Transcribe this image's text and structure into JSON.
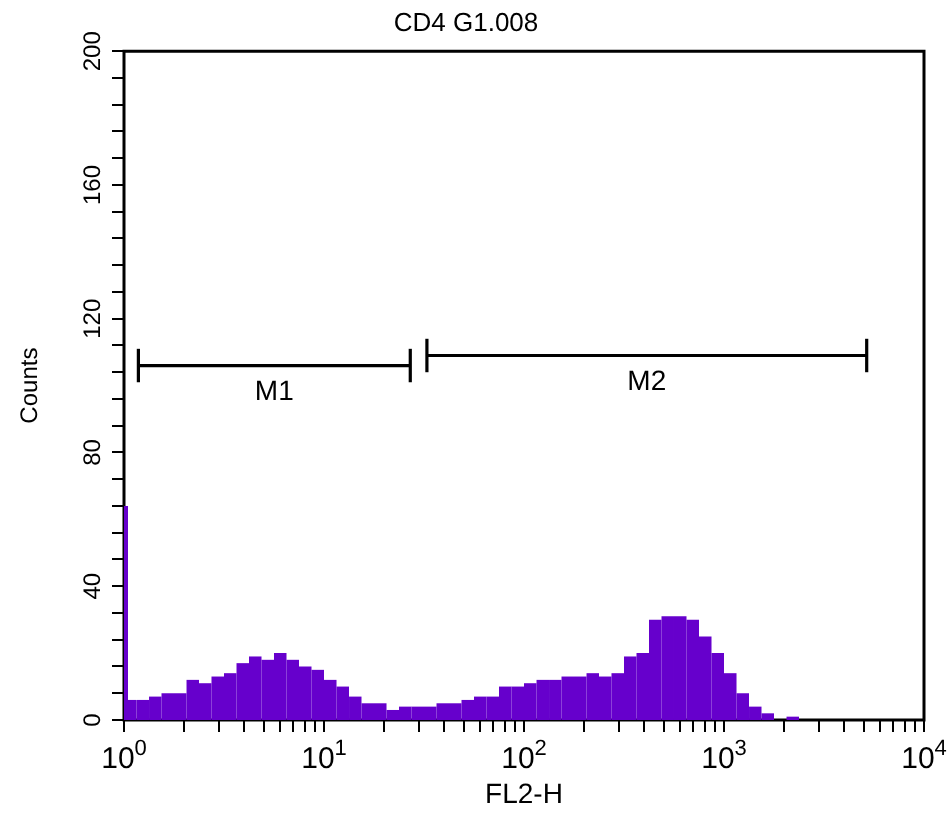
{
  "chart_data": {
    "type": "histogram",
    "title": "CD4 G1.008",
    "xlabel": "FL2-H",
    "ylabel": "Counts",
    "log": "x",
    "color": "#6600cc",
    "bins": [
      1,
      1.02,
      1.155,
      1.334,
      1.54,
      1.778,
      2.054,
      2.371,
      2.738,
      3.162,
      3.652,
      4.217,
      4.87,
      5.623,
      6.494,
      7.499,
      8.66,
      10,
      11.55,
      13.34,
      15.4,
      17.78,
      20.54,
      23.71,
      27.38,
      31.62,
      36.52,
      42.17,
      48.7,
      56.23,
      64.94,
      74.99,
      86.6,
      100,
      115.5,
      133.4,
      154.0,
      177.8,
      205.4,
      237.1,
      273.8,
      316.2,
      365.2,
      421.7,
      487.0,
      562.3,
      649.4,
      749.9,
      866.0,
      1000,
      1155,
      1334,
      1540,
      1778,
      2054,
      2371
    ],
    "values": [
      64,
      6,
      6,
      7,
      8,
      8,
      12,
      11,
      13,
      14,
      17,
      19,
      18,
      20,
      18,
      16,
      15,
      12,
      10,
      7,
      5,
      5,
      3,
      4,
      4,
      4,
      5,
      5,
      6,
      7,
      7,
      10,
      10,
      11,
      12,
      12,
      13,
      13,
      14,
      13,
      14,
      19,
      20,
      30,
      31,
      31,
      30,
      25,
      20,
      14,
      8,
      4,
      2,
      0,
      1
    ],
    "xlim": [
      1,
      10000
    ],
    "xticks": [
      {
        "value": 1,
        "label": "10$^{0}$"
      },
      {
        "value": 2,
        "label": null
      },
      {
        "value": 3,
        "label": null
      },
      {
        "value": 4,
        "label": null
      },
      {
        "value": 5,
        "label": null
      },
      {
        "value": 6,
        "label": null
      },
      {
        "value": 7,
        "label": null
      },
      {
        "value": 8,
        "label": null
      },
      {
        "value": 9,
        "label": null
      },
      {
        "value": 10,
        "label": "10$^{1}$"
      },
      {
        "value": 20,
        "label": null
      },
      {
        "value": 30,
        "label": null
      },
      {
        "value": 40,
        "label": null
      },
      {
        "value": 50,
        "label": null
      },
      {
        "value": 60,
        "label": null
      },
      {
        "value": 70,
        "label": null
      },
      {
        "value": 80,
        "label": null
      },
      {
        "value": 90,
        "label": null
      },
      {
        "value": 100,
        "label": "10$^{2}$"
      },
      {
        "value": 200,
        "label": null
      },
      {
        "value": 300,
        "label": null
      },
      {
        "value": 400,
        "label": null
      },
      {
        "value": 500,
        "label": null
      },
      {
        "value": 600,
        "label": null
      },
      {
        "value": 700,
        "label": null
      },
      {
        "value": 800,
        "label": null
      },
      {
        "value": 900,
        "label": null
      },
      {
        "value": 1000,
        "label": "10$^{3}$"
      },
      {
        "value": 2000,
        "label": null
      },
      {
        "value": 3000,
        "label": null
      },
      {
        "value": 4000,
        "label": null
      },
      {
        "value": 5000,
        "label": null
      },
      {
        "value": 6000,
        "label": null
      },
      {
        "value": 7000,
        "label": null
      },
      {
        "value": 8000,
        "label": null
      },
      {
        "value": 9000,
        "label": null
      },
      {
        "value": 10000,
        "label": "10$^{4}$"
      }
    ],
    "ylim": [
      0,
      200
    ],
    "yticks": [
      0,
      {
        "value": 8,
        "label": null
      },
      {
        "value": 16,
        "label": null
      },
      {
        "value": 24,
        "label": null
      },
      {
        "value": 32,
        "label": null
      },
      40,
      {
        "value": 48,
        "label": null
      },
      {
        "value": 56,
        "label": null
      },
      {
        "value": 64,
        "label": null
      },
      {
        "value": 72,
        "label": null
      },
      80,
      {
        "value": 88,
        "label": null
      },
      {
        "value": 96,
        "label": null
      },
      {
        "value": 104,
        "label": null
      },
      {
        "value": 112,
        "label": null
      },
      120,
      {
        "value": 128,
        "label": null
      },
      {
        "value": 136,
        "label": null
      },
      {
        "value": 144,
        "label": null
      },
      {
        "value": 152,
        "label": null
      },
      160,
      {
        "value": 168,
        "label": null
      },
      {
        "value": 176,
        "label": null
      },
      {
        "value": 184,
        "label": null
      },
      {
        "value": 192,
        "label": null
      },
      200
    ],
    "series": [
      {
        "type": "line",
        "x": [
          1.18,
          27
        ],
        "values": [
          106,
          106
        ],
        "errors": [
          5,
          5
        ],
        "color": "#000000"
      },
      {
        "type": "line",
        "x": [
          32.7,
          5170
        ],
        "values": [
          109,
          109
        ],
        "errors": [
          5,
          5
        ],
        "color": "#000000"
      }
    ],
    "annotations": [
      {
        "text": "M1",
        "x": 5.64,
        "y": 106
      },
      {
        "text": "M2",
        "x": 411,
        "y": 109
      }
    ]
  }
}
